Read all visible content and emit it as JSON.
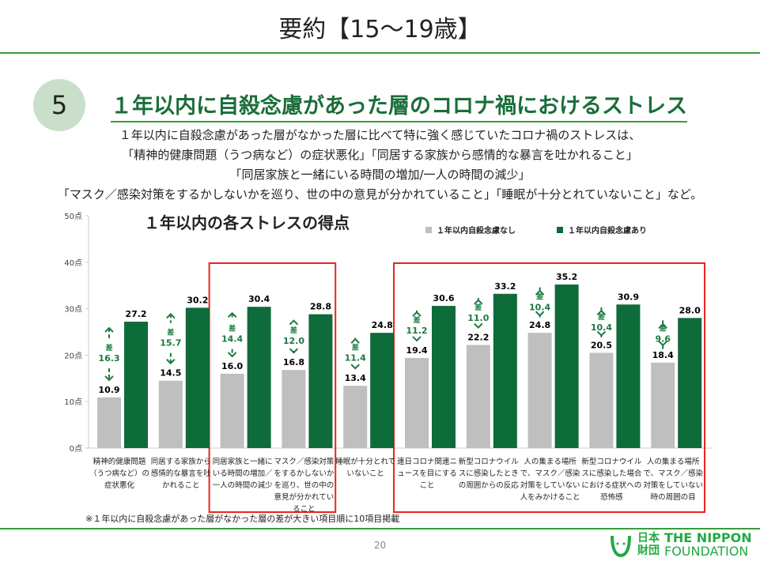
{
  "header": {
    "title": "要約【15〜19歳】",
    "section_number": "5",
    "heading": "１年以内に自殺念慮があった層のコロナ禍におけるストレス",
    "description": [
      "１年以内に自殺念慮があった層がなかった層に比べて特に強く感じていたコロナ禍のストレスは、",
      "「精神的健康問題（うつ病など）の症状悪化」「同居する家族から感情的な暴言を吐かれること」",
      "「同居家族と一緒にいる時間の増加/一人の時間の減少」",
      "「マスク／感染対策をするかしないかを巡り、世の中の意見が分かれていること」「睡眠が十分とれていないこと」など。"
    ]
  },
  "chart_data": {
    "type": "bar",
    "title": "１年以内の各ストレスの得点",
    "ylim": [
      0,
      50
    ],
    "yticks": [
      "0点",
      "10点",
      "20点",
      "30点",
      "40点",
      "50点"
    ],
    "grid": false,
    "legend_position": "top-right",
    "categories": [
      "精神的健康問題（うつ病など）の症状悪化",
      "同居する家族から感情的な暴言を吐かれること",
      "同居家族と一緒にいる時間の増加／一人の時間の減少",
      "マスク／感染対策をするかしないかを巡り、世の中の意見が分かれていること",
      "睡眠が十分とれていないこと",
      "連日コロナ関連ニュースを目にすること",
      "新型コロナウイルスに感染したときの周囲からの反応",
      "人の集まる場所で、マスク／感染対策をしていない人をみかけること",
      "新型コロナウイルスに感染した場合における症状への恐怖感",
      "人の集まる場所で、マスク／感染対策をしていない時の周囲の目"
    ],
    "series": [
      {
        "name": "１年以内自殺念慮なし",
        "color": "#bfbfbf",
        "values": [
          10.9,
          14.5,
          16.0,
          16.8,
          13.4,
          19.4,
          22.2,
          24.8,
          20.5,
          18.4
        ]
      },
      {
        "name": "１年以内自殺念慮あり",
        "color": "#0e6b3a",
        "values": [
          27.2,
          30.2,
          30.4,
          28.8,
          24.8,
          30.6,
          33.2,
          35.2,
          30.9,
          28.0
        ]
      }
    ],
    "difference_label": "差",
    "differences": [
      "16.3",
      "15.7",
      "14.4",
      "12.0",
      "11.4",
      "11.2",
      "11.0",
      "10.4",
      "10.4",
      "9.6"
    ],
    "highlighted_categories": [
      [
        2,
        3
      ],
      [
        5,
        9
      ]
    ]
  },
  "footer": {
    "note": "※１年以内に自殺念慮があった層がなかった層の差が大きい項目順に10項目掲載",
    "page": "20",
    "logo_kanji_top": "日本",
    "logo_kanji_bottom": "財団",
    "logo_text_1": "THE NIPPON",
    "logo_text_2": "FOUNDATION"
  }
}
